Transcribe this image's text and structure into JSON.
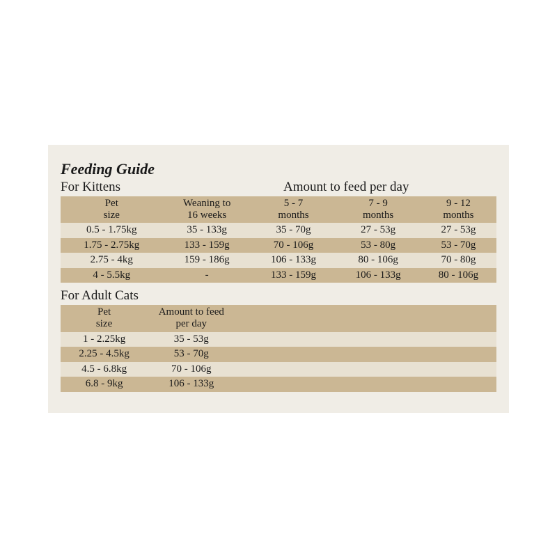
{
  "title": "Feeding Guide",
  "kittens": {
    "section_label": "For Kittens",
    "amount_label": "Amount to feed per day",
    "columns": [
      {
        "line1": "Pet",
        "line2": "size"
      },
      {
        "line1": "Weaning to",
        "line2": "16 weeks"
      },
      {
        "line1": "5 - 7",
        "line2": "months"
      },
      {
        "line1": "7 - 9",
        "line2": "months"
      },
      {
        "line1": "9 - 12",
        "line2": "months"
      }
    ],
    "rows": [
      [
        "0.5 - 1.75kg",
        "35 - 133g",
        "35 - 70g",
        "27 - 53g",
        "27 - 53g"
      ],
      [
        "1.75 - 2.75kg",
        "133 - 159g",
        "70 - 106g",
        "53 - 80g",
        "53 - 70g"
      ],
      [
        "2.75 - 4kg",
        "159 - 186g",
        "106 - 133g",
        "80 - 106g",
        "70 - 80g"
      ],
      [
        "4 - 5.5kg",
        "-",
        "133 - 159g",
        "106 - 133g",
        "80 - 106g"
      ]
    ],
    "colors": {
      "header_bg": "#cbb794",
      "row_odd_bg": "#e8e1d2",
      "row_even_bg": "#cbb794"
    }
  },
  "adults": {
    "section_label": "For Adult Cats",
    "columns": [
      {
        "line1": "Pet",
        "line2": "size"
      },
      {
        "line1": "Amount to feed",
        "line2": "per day"
      }
    ],
    "rows": [
      [
        "1 - 2.25kg",
        "35 - 53g"
      ],
      [
        "2.25 - 4.5kg",
        "53 - 70g"
      ],
      [
        "4.5 - 6.8kg",
        "70 - 106g"
      ],
      [
        "6.8 - 9kg",
        "106 - 133g"
      ]
    ],
    "colors": {
      "header_bg": "#cbb794",
      "row_odd_bg": "#e8e1d2",
      "row_even_bg": "#cbb794"
    }
  },
  "paper_bg": "#f0ede6"
}
